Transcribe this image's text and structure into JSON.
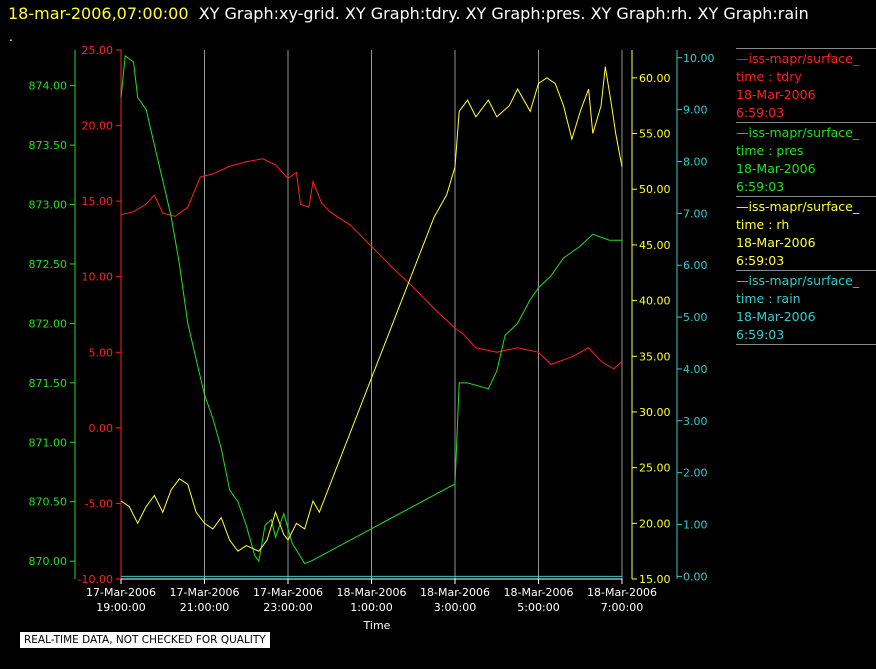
{
  "header": {
    "timestamp": "18-mar-2006,07:00:00",
    "titles": "XY Graph:xy-grid.  XY Graph:tdry.  XY Graph:pres.  XY Graph:rh.  XY Graph:rain"
  },
  "dot": ".",
  "quality_note": "REAL-TIME DATA, NOT CHECKED FOR QUALITY",
  "legend": [
    {
      "name": "—iss-mapr/surface_",
      "time_label": "time : tdry",
      "date": "18-Mar-2006",
      "clock": "6:59:03",
      "color": "#ff2020"
    },
    {
      "name": "—iss-mapr/surface_",
      "time_label": "time : pres",
      "date": "18-Mar-2006",
      "clock": "6:59:03",
      "color": "#20e020"
    },
    {
      "name": "—iss-mapr/surface_",
      "time_label": "time : rh",
      "date": "18-Mar-2006",
      "clock": "6:59:03",
      "color": "#ffff33"
    },
    {
      "name": "—iss-mapr/surface_",
      "time_label": "time : rain",
      "date": "18-Mar-2006",
      "clock": "6:59:03",
      "color": "#33cccc"
    }
  ],
  "chart_data": {
    "type": "line",
    "xlabel": "Time",
    "x_ticks": [
      {
        "date": "17-Mar-2006",
        "time": "19:00:00",
        "hour": 0
      },
      {
        "date": "17-Mar-2006",
        "time": "21:00:00",
        "hour": 2
      },
      {
        "date": "17-Mar-2006",
        "time": "23:00:00",
        "hour": 4
      },
      {
        "date": "18-Mar-2006",
        "time": "1:00:00",
        "hour": 6
      },
      {
        "date": "18-Mar-2006",
        "time": "3:00:00",
        "hour": 8
      },
      {
        "date": "18-Mar-2006",
        "time": "5:00:00",
        "hour": 10
      },
      {
        "date": "18-Mar-2006",
        "time": "7:00:00",
        "hour": 12
      }
    ],
    "grid": "vertical",
    "axes": {
      "tdry": {
        "color": "#ff2020",
        "min": -10,
        "max": 25,
        "ticks": [
          "-10.00",
          "-5.00",
          "0.00",
          "5.00",
          "10.00",
          "15.00",
          "20.00",
          "25.00"
        ]
      },
      "pres": {
        "color": "#20e020",
        "min": 869.85,
        "max": 874.3,
        "ticks": [
          "870.00",
          "870.50",
          "871.00",
          "871.50",
          "872.00",
          "872.50",
          "873.00",
          "873.50",
          "874.00"
        ]
      },
      "rh": {
        "color": "#ffff33",
        "min": 15,
        "max": 62.5,
        "ticks": [
          "15.00",
          "20.00",
          "25.00",
          "30.00",
          "35.00",
          "40.00",
          "45.00",
          "50.00",
          "55.00",
          "60.00"
        ]
      },
      "rain": {
        "color": "#33cccc",
        "min": -0.05,
        "max": 10.15,
        "ticks": [
          "0.00",
          "1.00",
          "2.00",
          "3.00",
          "4.00",
          "5.00",
          "6.00",
          "7.00",
          "8.00",
          "9.00",
          "10.00"
        ]
      }
    },
    "series": [
      {
        "name": "tdry",
        "axis": "tdry",
        "color": "#ff2020",
        "points": [
          [
            0,
            14.1
          ],
          [
            0.3,
            14.3
          ],
          [
            0.6,
            14.8
          ],
          [
            0.8,
            15.4
          ],
          [
            1.0,
            14.2
          ],
          [
            1.3,
            14.0
          ],
          [
            1.6,
            14.6
          ],
          [
            1.9,
            16.6
          ],
          [
            2.2,
            16.8
          ],
          [
            2.6,
            17.3
          ],
          [
            3.0,
            17.6
          ],
          [
            3.4,
            17.8
          ],
          [
            3.7,
            17.4
          ],
          [
            4.0,
            16.5
          ],
          [
            4.2,
            16.9
          ],
          [
            4.3,
            14.8
          ],
          [
            4.5,
            14.6
          ],
          [
            4.6,
            16.3
          ],
          [
            4.8,
            14.9
          ],
          [
            5.0,
            14.3
          ],
          [
            5.5,
            13.4
          ],
          [
            6.0,
            12.0
          ],
          [
            6.5,
            10.6
          ],
          [
            7.0,
            9.3
          ],
          [
            7.5,
            7.9
          ],
          [
            8.0,
            6.6
          ],
          [
            8.2,
            6.2
          ],
          [
            8.5,
            5.3
          ],
          [
            9.0,
            5.0
          ],
          [
            9.5,
            5.3
          ],
          [
            10.0,
            5.0
          ],
          [
            10.3,
            4.2
          ],
          [
            10.8,
            4.7
          ],
          [
            11.2,
            5.3
          ],
          [
            11.5,
            4.4
          ],
          [
            11.8,
            3.9
          ],
          [
            12.0,
            4.4
          ]
        ]
      },
      {
        "name": "pres",
        "axis": "pres",
        "color": "#20e020",
        "points": [
          [
            0,
            873.9
          ],
          [
            0.1,
            874.25
          ],
          [
            0.3,
            874.2
          ],
          [
            0.4,
            873.9
          ],
          [
            0.6,
            873.8
          ],
          [
            0.8,
            873.5
          ],
          [
            1.0,
            873.2
          ],
          [
            1.2,
            872.9
          ],
          [
            1.4,
            872.5
          ],
          [
            1.6,
            872.0
          ],
          [
            1.8,
            871.7
          ],
          [
            2.0,
            871.4
          ],
          [
            2.2,
            871.2
          ],
          [
            2.4,
            870.95
          ],
          [
            2.6,
            870.6
          ],
          [
            2.8,
            870.5
          ],
          [
            3.0,
            870.3
          ],
          [
            3.2,
            870.05
          ],
          [
            3.3,
            870.0
          ],
          [
            3.45,
            870.3
          ],
          [
            3.6,
            870.35
          ],
          [
            3.7,
            870.2
          ],
          [
            3.9,
            870.4
          ],
          [
            4.1,
            870.15
          ],
          [
            4.4,
            869.98
          ],
          [
            4.55,
            870.0
          ],
          [
            8.0,
            870.65
          ],
          [
            8.1,
            871.5
          ],
          [
            8.3,
            871.5
          ],
          [
            8.8,
            871.45
          ],
          [
            9.0,
            871.6
          ],
          [
            9.2,
            871.9
          ],
          [
            9.5,
            872.0
          ],
          [
            9.8,
            872.2
          ],
          [
            10.0,
            872.3
          ],
          [
            10.3,
            872.4
          ],
          [
            10.6,
            872.55
          ],
          [
            11.0,
            872.65
          ],
          [
            11.3,
            872.75
          ],
          [
            11.7,
            872.7
          ],
          [
            12.0,
            872.7
          ]
        ]
      },
      {
        "name": "rh",
        "axis": "rh",
        "color": "#ffff33",
        "points": [
          [
            0,
            22.0
          ],
          [
            0.2,
            21.5
          ],
          [
            0.4,
            20.0
          ],
          [
            0.6,
            21.5
          ],
          [
            0.8,
            22.5
          ],
          [
            1.0,
            21.0
          ],
          [
            1.2,
            23.0
          ],
          [
            1.4,
            24.0
          ],
          [
            1.6,
            23.5
          ],
          [
            1.8,
            21.0
          ],
          [
            2.0,
            20.0
          ],
          [
            2.2,
            19.5
          ],
          [
            2.4,
            20.5
          ],
          [
            2.6,
            18.5
          ],
          [
            2.8,
            17.5
          ],
          [
            3.0,
            18.0
          ],
          [
            3.3,
            17.5
          ],
          [
            3.5,
            18.5
          ],
          [
            3.7,
            21.0
          ],
          [
            3.9,
            19.0
          ],
          [
            4.0,
            18.5
          ],
          [
            4.2,
            20.0
          ],
          [
            4.4,
            19.5
          ],
          [
            4.6,
            22.0
          ],
          [
            4.75,
            21.0
          ],
          [
            7.5,
            47.5
          ],
          [
            7.8,
            49.5
          ],
          [
            8.0,
            52.0
          ],
          [
            8.1,
            57.0
          ],
          [
            8.3,
            58.0
          ],
          [
            8.5,
            56.5
          ],
          [
            8.8,
            58.0
          ],
          [
            9.0,
            56.5
          ],
          [
            9.3,
            57.5
          ],
          [
            9.5,
            59.0
          ],
          [
            9.8,
            57.0
          ],
          [
            10.0,
            59.5
          ],
          [
            10.2,
            60.0
          ],
          [
            10.4,
            59.5
          ],
          [
            10.6,
            57.5
          ],
          [
            10.8,
            54.5
          ],
          [
            11.0,
            57.0
          ],
          [
            11.2,
            59.0
          ],
          [
            11.3,
            55.0
          ],
          [
            11.5,
            57.5
          ],
          [
            11.6,
            61.0
          ],
          [
            11.75,
            57.5
          ],
          [
            11.85,
            55.0
          ],
          [
            12.0,
            52.0
          ]
        ]
      },
      {
        "name": "rain",
        "axis": "rain",
        "color": "#33cccc",
        "points": [
          [
            0,
            0.0
          ],
          [
            12,
            0.0
          ]
        ]
      }
    ]
  }
}
